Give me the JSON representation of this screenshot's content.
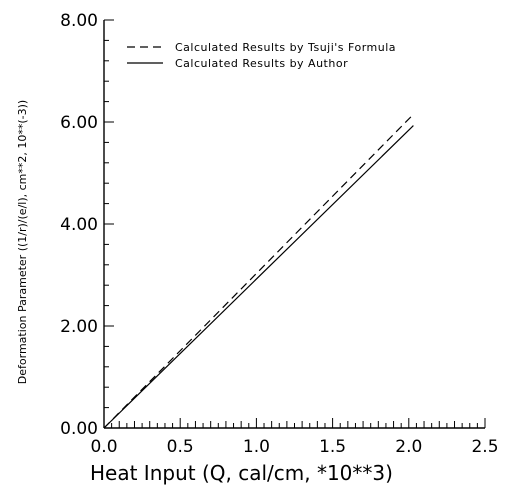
{
  "chart_data": {
    "type": "line",
    "xlabel": "Heat Input (Q, cal/cm, *10**3)",
    "ylabel": "Deformation Parameter ((1/r)/(e/l), cm**2, 10**(-3))",
    "xlim": [
      0,
      2.5
    ],
    "ylim": [
      0,
      8
    ],
    "x_ticks": [
      0.0,
      0.5,
      1.0,
      1.5,
      2.0,
      2.5
    ],
    "x_tick_labels": [
      "0.0",
      "0.5",
      "1.0",
      "1.5",
      "2.0",
      "2.5"
    ],
    "y_ticks": [
      0,
      2,
      4,
      6,
      8
    ],
    "y_tick_labels": [
      "0.00",
      "2.00",
      "4.00",
      "6.00",
      "8.00"
    ],
    "grid": false,
    "legend_position": "top",
    "series": [
      {
        "name": "Calculated Results by Tsuji's Formula",
        "style": "dashed",
        "x": [
          0,
          2.03
        ],
        "y": [
          0,
          6.15
        ]
      },
      {
        "name": "Calculated Results by Author",
        "style": "solid",
        "x": [
          0,
          2.03
        ],
        "y": [
          0,
          5.93
        ]
      }
    ]
  }
}
